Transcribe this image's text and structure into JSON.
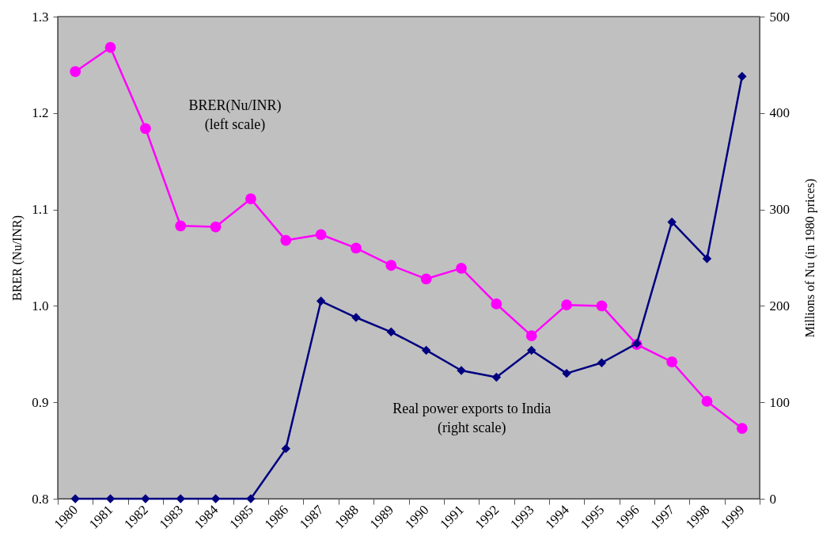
{
  "chart_data": {
    "type": "line",
    "ylabel": "BRER (Nu/INR)",
    "y2label": "Millions of Nu (in 1980 prices)",
    "categories": [
      "1980",
      "1981",
      "1982",
      "1983",
      "1984",
      "1985",
      "1986",
      "1987",
      "1988",
      "1989",
      "1990",
      "1991",
      "1992",
      "1993",
      "1994",
      "1995",
      "1996",
      "1997",
      "1998",
      "1999"
    ],
    "ylim": [
      0.8,
      1.3
    ],
    "yticks": [
      {
        "value": 0.8,
        "label": "0.8"
      },
      {
        "value": 0.9,
        "label": "0.9"
      },
      {
        "value": 1.0,
        "label": "1.0"
      },
      {
        "value": 1.1,
        "label": "1.1"
      },
      {
        "value": 1.2,
        "label": "1.2"
      },
      {
        "value": 1.3,
        "label": "1.3"
      }
    ],
    "y2lim": [
      0,
      500
    ],
    "y2ticks": [
      0,
      100,
      200,
      300,
      400,
      500
    ],
    "series": [
      {
        "name": "BRER(Nu/INR)\n(left scale)",
        "color": "#ff00ff",
        "marker": "circle",
        "values": [
          1.243,
          1.268,
          1.184,
          1.083,
          1.082,
          1.111,
          1.068,
          1.074,
          1.06,
          1.042,
          1.028,
          1.039,
          1.002,
          0.969,
          1.001,
          1.0,
          0.96,
          0.942,
          0.901,
          0.873
        ]
      },
      {
        "name": "Real power exports to India\n(right scale)",
        "color": "#000080",
        "marker": "diamond",
        "axis": "y2",
        "values": [
          0,
          0,
          0,
          0,
          0,
          0,
          52,
          205,
          188,
          173,
          154,
          133,
          126,
          154,
          130,
          141,
          161,
          287,
          249,
          438
        ]
      }
    ]
  }
}
